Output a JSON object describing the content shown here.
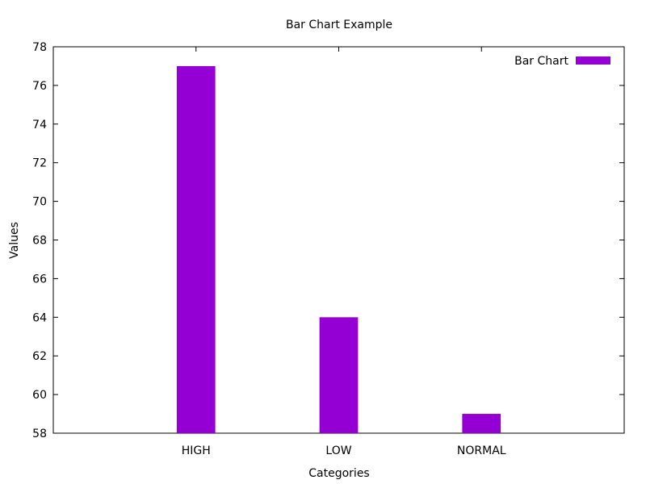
{
  "chart_data": {
    "type": "bar",
    "title": "Bar Chart Example",
    "xlabel": "Categories",
    "ylabel": "Values",
    "categories": [
      "HIGH",
      "LOW",
      "NORMAL"
    ],
    "series": [
      {
        "name": "Bar Chart",
        "values": [
          77,
          64,
          59
        ]
      }
    ],
    "ylim": [
      58,
      78
    ],
    "yticks": [
      58,
      60,
      62,
      64,
      66,
      68,
      70,
      72,
      74,
      76,
      78
    ],
    "grid": false,
    "legend_position": "top-right",
    "bar_color": "#9400d3"
  }
}
